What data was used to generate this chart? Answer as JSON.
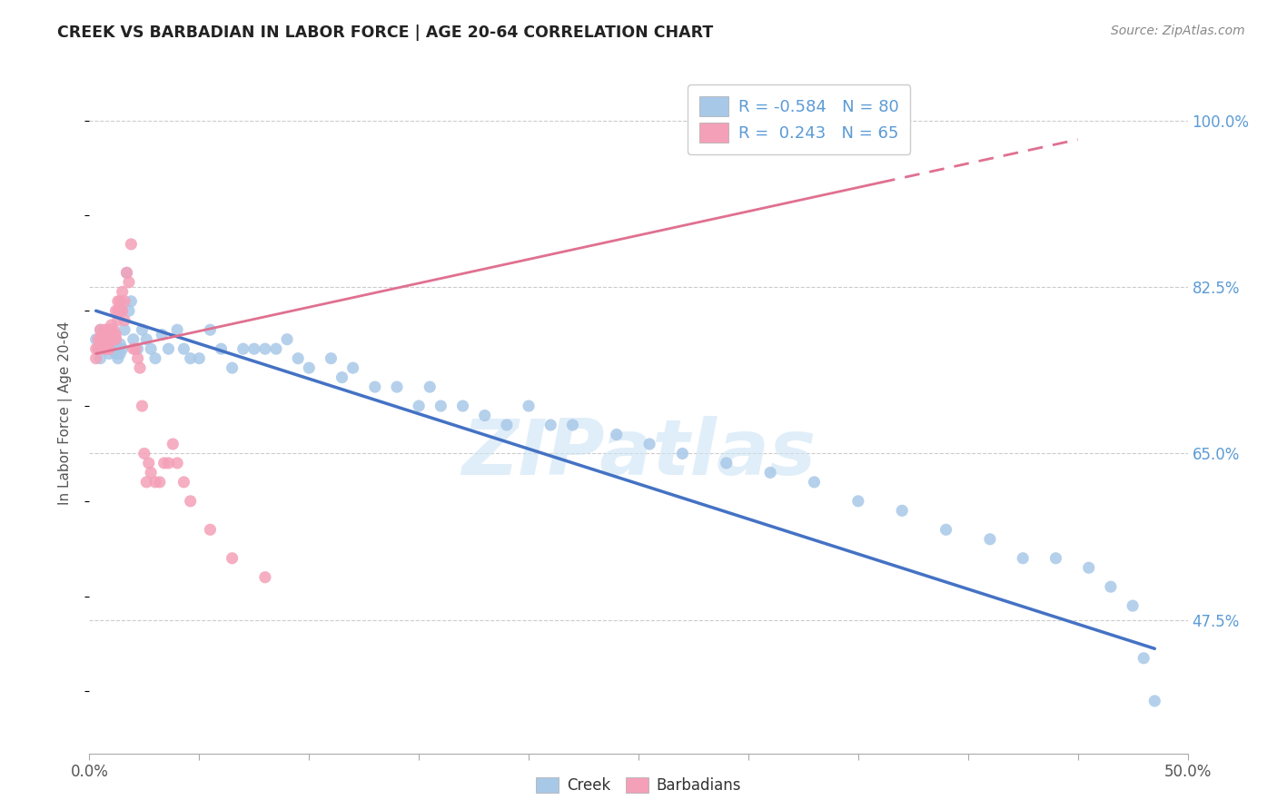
{
  "title": "CREEK VS BARBADIAN IN LABOR FORCE | AGE 20-64 CORRELATION CHART",
  "source": "Source: ZipAtlas.com",
  "ylabel": "In Labor Force | Age 20-64",
  "xlim": [
    0.0,
    0.5
  ],
  "ylim": [
    0.335,
    1.05
  ],
  "creek_color": "#a8c8e8",
  "barbadian_color": "#f4a0b8",
  "creek_R": -0.584,
  "creek_N": 80,
  "barbadian_R": 0.243,
  "barbadian_N": 65,
  "creek_line_color": "#4472c4",
  "barbadian_line_color": "#e07090",
  "watermark": "ZIPatlas",
  "grid_color": "#cccccc",
  "ytick_vals": [
    1.0,
    0.825,
    0.65,
    0.475
  ],
  "ytick_labels": [
    "100.0%",
    "82.5%",
    "65.0%",
    "47.5%"
  ],
  "xtick_vals": [
    0.0,
    0.05,
    0.1,
    0.15,
    0.2,
    0.25,
    0.3,
    0.35,
    0.4,
    0.45,
    0.5
  ],
  "creek_x": [
    0.003,
    0.004,
    0.005,
    0.005,
    0.006,
    0.006,
    0.007,
    0.007,
    0.008,
    0.008,
    0.009,
    0.009,
    0.01,
    0.01,
    0.011,
    0.011,
    0.012,
    0.012,
    0.013,
    0.013,
    0.014,
    0.014,
    0.015,
    0.016,
    0.017,
    0.018,
    0.019,
    0.02,
    0.022,
    0.024,
    0.026,
    0.028,
    0.03,
    0.033,
    0.036,
    0.04,
    0.043,
    0.046,
    0.05,
    0.055,
    0.06,
    0.065,
    0.07,
    0.075,
    0.08,
    0.085,
    0.09,
    0.095,
    0.1,
    0.11,
    0.115,
    0.12,
    0.13,
    0.14,
    0.15,
    0.155,
    0.16,
    0.17,
    0.18,
    0.19,
    0.2,
    0.21,
    0.22,
    0.24,
    0.255,
    0.27,
    0.29,
    0.31,
    0.33,
    0.35,
    0.37,
    0.39,
    0.41,
    0.425,
    0.44,
    0.455,
    0.465,
    0.475,
    0.48,
    0.485
  ],
  "creek_y": [
    0.77,
    0.76,
    0.78,
    0.75,
    0.76,
    0.77,
    0.775,
    0.76,
    0.77,
    0.76,
    0.765,
    0.755,
    0.76,
    0.77,
    0.775,
    0.76,
    0.755,
    0.77,
    0.76,
    0.75,
    0.765,
    0.755,
    0.76,
    0.78,
    0.84,
    0.8,
    0.81,
    0.77,
    0.76,
    0.78,
    0.77,
    0.76,
    0.75,
    0.775,
    0.76,
    0.78,
    0.76,
    0.75,
    0.75,
    0.78,
    0.76,
    0.74,
    0.76,
    0.76,
    0.76,
    0.76,
    0.77,
    0.75,
    0.74,
    0.75,
    0.73,
    0.74,
    0.72,
    0.72,
    0.7,
    0.72,
    0.7,
    0.7,
    0.69,
    0.68,
    0.7,
    0.68,
    0.68,
    0.67,
    0.66,
    0.65,
    0.64,
    0.63,
    0.62,
    0.6,
    0.59,
    0.57,
    0.56,
    0.54,
    0.54,
    0.53,
    0.51,
    0.49,
    0.435,
    0.39
  ],
  "barbadian_x": [
    0.003,
    0.003,
    0.004,
    0.004,
    0.005,
    0.005,
    0.005,
    0.006,
    0.006,
    0.006,
    0.006,
    0.007,
    0.007,
    0.007,
    0.007,
    0.008,
    0.008,
    0.008,
    0.008,
    0.009,
    0.009,
    0.009,
    0.009,
    0.01,
    0.01,
    0.01,
    0.01,
    0.011,
    0.011,
    0.011,
    0.012,
    0.012,
    0.012,
    0.013,
    0.013,
    0.013,
    0.014,
    0.014,
    0.015,
    0.015,
    0.016,
    0.016,
    0.017,
    0.018,
    0.019,
    0.02,
    0.021,
    0.022,
    0.023,
    0.024,
    0.025,
    0.026,
    0.027,
    0.028,
    0.03,
    0.032,
    0.034,
    0.036,
    0.038,
    0.04,
    0.043,
    0.046,
    0.055,
    0.065,
    0.08
  ],
  "barbadian_y": [
    0.76,
    0.75,
    0.76,
    0.77,
    0.76,
    0.77,
    0.78,
    0.76,
    0.765,
    0.775,
    0.77,
    0.76,
    0.77,
    0.775,
    0.78,
    0.76,
    0.77,
    0.775,
    0.78,
    0.76,
    0.77,
    0.775,
    0.78,
    0.77,
    0.775,
    0.78,
    0.785,
    0.77,
    0.775,
    0.78,
    0.77,
    0.775,
    0.8,
    0.79,
    0.8,
    0.81,
    0.8,
    0.81,
    0.8,
    0.82,
    0.79,
    0.81,
    0.84,
    0.83,
    0.87,
    0.76,
    0.76,
    0.75,
    0.74,
    0.7,
    0.65,
    0.62,
    0.64,
    0.63,
    0.62,
    0.62,
    0.64,
    0.64,
    0.66,
    0.64,
    0.62,
    0.6,
    0.57,
    0.54,
    0.52
  ],
  "barb_line_x0": 0.003,
  "barb_line_x1": 0.45,
  "barb_line_y0": 0.755,
  "barb_line_y1": 0.98,
  "creek_line_x0": 0.003,
  "creek_line_x1": 0.485,
  "creek_line_y0": 0.8,
  "creek_line_y1": 0.445
}
